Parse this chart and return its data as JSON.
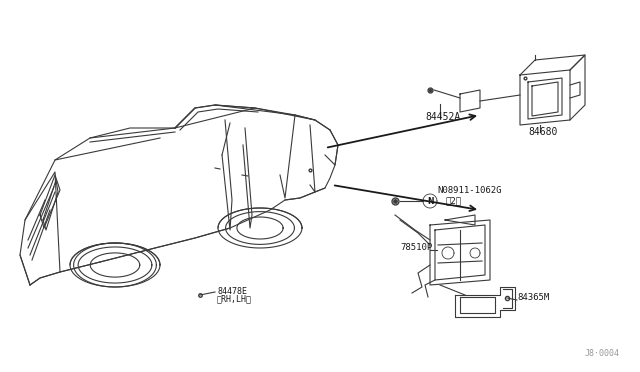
{
  "bg_color": "#ffffff",
  "line_color": "#3a3a3a",
  "label_color": "#1a1a1a",
  "watermark": "J8·0004",
  "parts": {
    "label_84452A": "84452A",
    "label_84680": "84680",
    "label_N08911": "N08911-1062G",
    "label_N08911b": "（2）",
    "label_78510P": "78510P",
    "label_84365M": "84365M",
    "car_label": "84478E",
    "car_label_sub": "（RH,LH）"
  }
}
